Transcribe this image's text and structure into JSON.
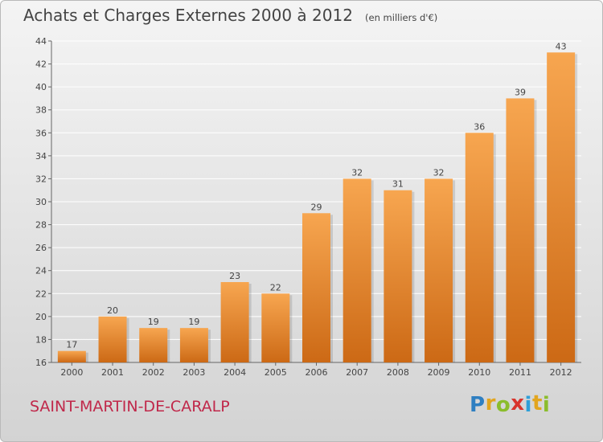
{
  "title": "Achats et Charges Externes 2000 à 2012",
  "subtitle": "(en milliers d'€)",
  "commune": "SAINT-MARTIN-DE-CARALP",
  "logo": {
    "letters": [
      "P",
      "r",
      "o",
      "x",
      "i",
      "t",
      "i"
    ],
    "colors": [
      "#2f7fc1",
      "#e2a51e",
      "#8bbd2c",
      "#d8342c",
      "#2f9fd8",
      "#e2a51e",
      "#8bbd2c"
    ]
  },
  "colors": {
    "bar_top": "#f7a650",
    "bar_bottom": "#cc6915",
    "commune": "#c0284a",
    "title": "#444444"
  },
  "chart_data": {
    "type": "bar",
    "title": "Achats et Charges Externes 2000 à 2012",
    "subtitle": "(en milliers d'€)",
    "categories": [
      "2000",
      "2001",
      "2002",
      "2003",
      "2004",
      "2005",
      "2006",
      "2007",
      "2008",
      "2009",
      "2010",
      "2011",
      "2012"
    ],
    "values": [
      17,
      20,
      19,
      19,
      23,
      22,
      29,
      32,
      31,
      32,
      36,
      39,
      43
    ],
    "ylim": [
      16,
      44
    ],
    "yticks": [
      16,
      18,
      20,
      22,
      24,
      26,
      28,
      30,
      32,
      34,
      36,
      38,
      40,
      42,
      44
    ],
    "grid": true,
    "data_labels": true,
    "legend": "none"
  }
}
